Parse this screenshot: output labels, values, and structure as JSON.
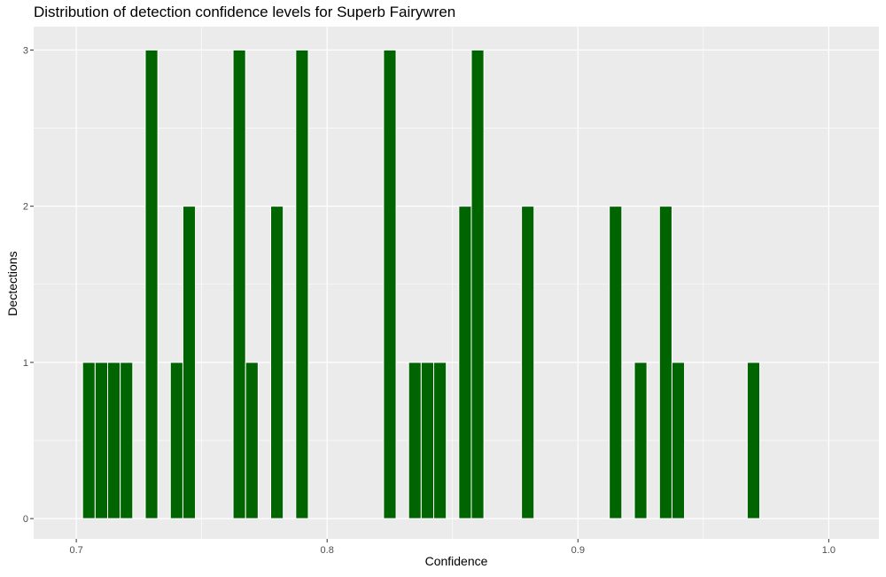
{
  "chart_data": {
    "type": "bar",
    "title": "Distribution of detection confidence levels for Superb Fairywren",
    "xlabel": "Confidence",
    "ylabel": "Dectections",
    "xlim": [
      0.683,
      1.02
    ],
    "ylim": [
      -0.13,
      3.15
    ],
    "xticks": [
      0.7,
      0.8,
      0.9,
      1.0
    ],
    "xtick_labels": [
      "0.7",
      "0.8",
      "0.9",
      "1.0"
    ],
    "yticks": [
      0,
      1,
      2,
      3
    ],
    "ytick_labels": [
      "0",
      "1",
      "2",
      "3"
    ],
    "bin_width": 0.005,
    "x": [
      0.705,
      0.71,
      0.715,
      0.72,
      0.73,
      0.74,
      0.745,
      0.765,
      0.77,
      0.78,
      0.79,
      0.825,
      0.835,
      0.84,
      0.845,
      0.855,
      0.86,
      0.88,
      0.915,
      0.925,
      0.935,
      0.94,
      0.97
    ],
    "values": [
      1,
      1,
      1,
      1,
      3,
      1,
      2,
      3,
      1,
      2,
      3,
      3,
      1,
      1,
      1,
      2,
      3,
      2,
      2,
      1,
      2,
      1,
      1
    ],
    "bar_color": "#006400",
    "panel_background": "#EBEBEB",
    "grid": true,
    "legend": "none"
  }
}
